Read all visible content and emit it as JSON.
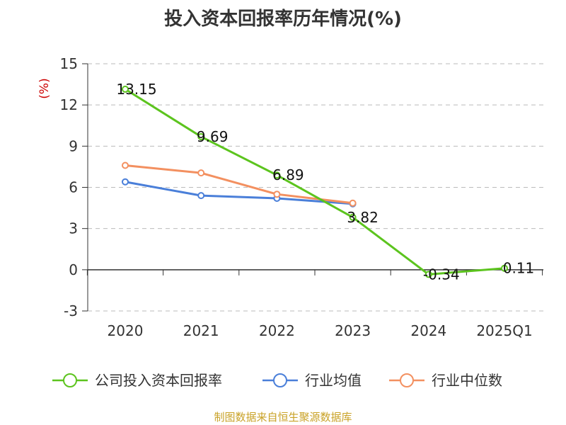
{
  "chart_data": {
    "type": "line",
    "title": "投入资本回报率历年情况(%)",
    "ylabel": "(%)",
    "xlabel": "",
    "categories": [
      "2020",
      "2021",
      "2022",
      "2023",
      "2024",
      "2025Q1"
    ],
    "ylim": [
      -3,
      15
    ],
    "yticks": [
      -3,
      0,
      3,
      6,
      9,
      12,
      15
    ],
    "grid": true,
    "legend_position": "bottom",
    "series": [
      {
        "name": "公司投入资本回报率",
        "color": "#5cc41e",
        "values": [
          13.15,
          9.69,
          6.89,
          3.82,
          -0.34,
          0.11
        ],
        "labels": [
          "13.15",
          "9.69",
          "6.89",
          "3.82",
          "-0.34",
          "0.11"
        ]
      },
      {
        "name": "行业均值",
        "color": "#4a7fd9",
        "values": [
          6.4,
          5.4,
          5.2,
          4.8,
          null,
          null
        ]
      },
      {
        "name": "行业中位数",
        "color": "#f39060",
        "values": [
          7.6,
          7.05,
          5.5,
          4.85,
          null,
          null
        ]
      }
    ]
  },
  "source": "制图数据来自恒生聚源数据库"
}
